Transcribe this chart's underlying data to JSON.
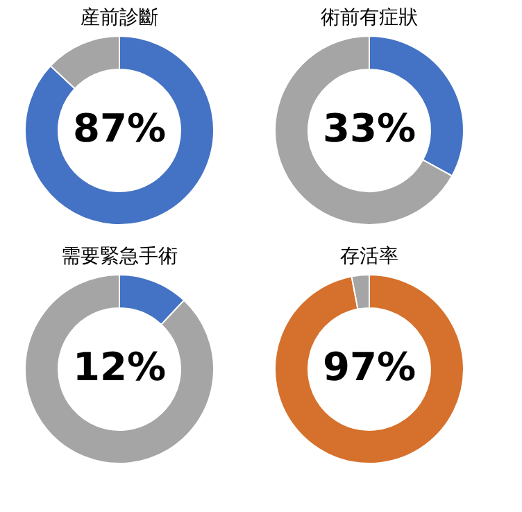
{
  "chart_data": [
    {
      "type": "donut",
      "title": "産前診斷",
      "categories": [
        null,
        null
      ],
      "values": [
        87,
        13
      ],
      "colors": [
        "#4472c4",
        "#a5a5a5"
      ],
      "value_labels": [
        "87%",
        null
      ]
    },
    {
      "type": "donut",
      "title": "術前有症狀",
      "categories": [
        null,
        null
      ],
      "values": [
        33,
        67
      ],
      "colors": [
        "#4472c4",
        "#a5a5a5"
      ],
      "value_labels": [
        "33%",
        null
      ]
    },
    {
      "type": "donut",
      "title": "需要緊急手術",
      "categories": [
        null,
        null
      ],
      "values": [
        12,
        88
      ],
      "colors": [
        "#4472c4",
        "#a5a5a5"
      ],
      "value_labels": [
        "12%",
        null
      ]
    },
    {
      "type": "donut",
      "title": "存活率",
      "categories": [
        null,
        null
      ],
      "values": [
        97,
        3
      ],
      "colors": [
        "#d5712c",
        "#a5a5a5"
      ],
      "value_labels": [
        "97%",
        null
      ]
    }
  ]
}
